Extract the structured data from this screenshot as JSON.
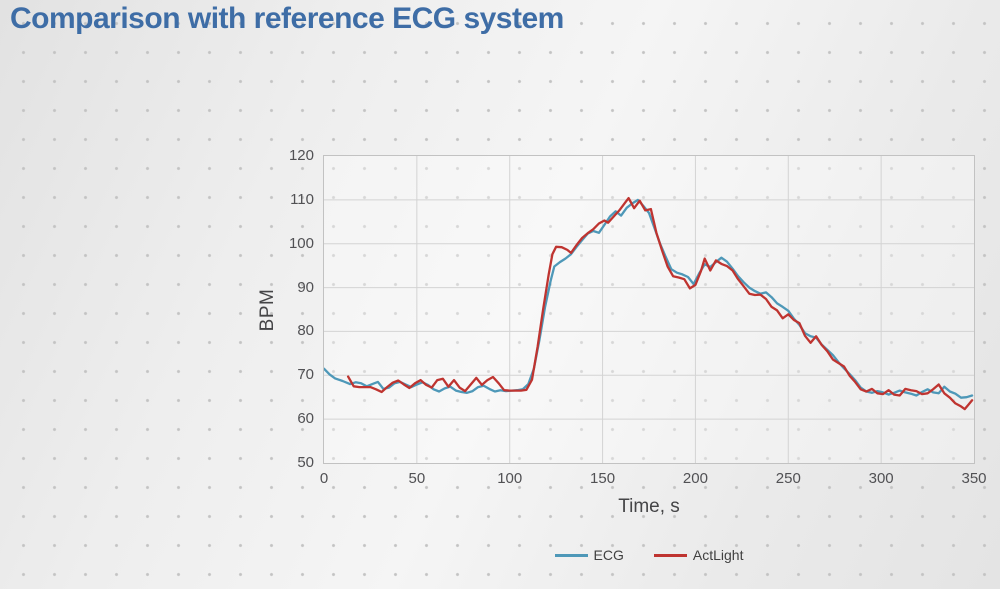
{
  "title": "Comparison with reference ECG system",
  "colors": {
    "title_text": "#3e6da6",
    "background": "#ececec",
    "grid": "#d3d3d3",
    "plot_border": "#c2c2c2",
    "tick_text": "#515154",
    "axis_label_text": "#454547",
    "legend_text": "#414141",
    "ecg_line": "#4e98b8",
    "actlight_line": "#bf3430"
  },
  "chart_data": {
    "type": "line",
    "title": "",
    "xlabel": "Time, s",
    "ylabel": "BPM",
    "xlim": [
      0,
      350
    ],
    "ylim": [
      50,
      120
    ],
    "x_ticks": [
      0,
      50,
      100,
      150,
      200,
      250,
      300,
      350
    ],
    "y_ticks": [
      50,
      60,
      70,
      80,
      90,
      100,
      110,
      120
    ],
    "grid": true,
    "legend_position": "bottom-center",
    "series": [
      {
        "name": "ECG",
        "color": "#4e98b8",
        "x": [
          0,
          3,
          6,
          10,
          14,
          17,
          20,
          23,
          26,
          29,
          32,
          35,
          38,
          41,
          44,
          47,
          50,
          53,
          56,
          59,
          62,
          65,
          68,
          71,
          74,
          77,
          80,
          83,
          86,
          89,
          92,
          95,
          98,
          101,
          104,
          107,
          110,
          113,
          116,
          119,
          122,
          124,
          127,
          130,
          133,
          136,
          139,
          142,
          145,
          148,
          151,
          154,
          157,
          160,
          163,
          166,
          169,
          172,
          175,
          178,
          181,
          184,
          187,
          190,
          193,
          196,
          199,
          202,
          205,
          208,
          211,
          214,
          217,
          220,
          223,
          226,
          229,
          232,
          235,
          238,
          241,
          244,
          247,
          250,
          253,
          256,
          259,
          262,
          265,
          268,
          271,
          274,
          277,
          280,
          283,
          286,
          289,
          292,
          295,
          298,
          301,
          304,
          307,
          310,
          313,
          316,
          319,
          322,
          325,
          328,
          331,
          334,
          337,
          340,
          343,
          346,
          349
        ],
        "y": [
          71.5,
          70.2,
          69.3,
          68.7,
          68.0,
          68.4,
          68.2,
          67.5,
          68.0,
          68.5,
          66.9,
          67.2,
          68.2,
          68.5,
          67.9,
          67.3,
          67.9,
          68.4,
          67.8,
          66.8,
          66.3,
          67.0,
          67.4,
          66.5,
          66.2,
          66.0,
          66.4,
          67.3,
          67.6,
          66.9,
          66.3,
          66.6,
          66.4,
          66.5,
          66.6,
          66.8,
          68.0,
          71.5,
          78.0,
          85.5,
          91.5,
          94.8,
          95.8,
          96.6,
          97.6,
          99.3,
          100.8,
          102.3,
          102.9,
          102.5,
          104.3,
          106.2,
          107.4,
          106.4,
          108.2,
          109.2,
          110.0,
          108.6,
          107.0,
          103.5,
          100.0,
          97.0,
          94.2,
          93.4,
          93.0,
          92.4,
          90.8,
          93.2,
          95.3,
          94.7,
          95.8,
          96.8,
          95.9,
          94.3,
          92.6,
          91.2,
          90.0,
          89.2,
          88.6,
          88.9,
          87.8,
          86.4,
          85.6,
          84.7,
          82.9,
          81.5,
          79.6,
          78.9,
          78.6,
          77.0,
          75.8,
          74.6,
          73.0,
          71.6,
          70.3,
          68.9,
          67.2,
          66.3,
          66.0,
          66.4,
          66.1,
          65.6,
          66.0,
          66.5,
          66.1,
          65.8,
          65.4,
          66.2,
          66.8,
          66.1,
          65.9,
          67.4,
          66.3,
          65.8,
          64.9,
          65.0,
          65.4
        ]
      },
      {
        "name": "ActLight",
        "color": "#bf3430",
        "x": [
          13,
          16,
          19,
          22,
          25,
          28,
          31,
          34,
          37,
          40,
          43,
          46,
          49,
          52,
          55,
          58,
          61,
          64,
          67,
          70,
          73,
          76,
          79,
          82,
          85,
          88,
          91,
          94,
          97,
          100,
          103,
          106,
          109,
          112,
          115,
          118,
          121,
          123,
          125,
          128,
          131,
          133,
          136,
          139,
          142,
          145,
          148,
          151,
          153,
          156,
          159,
          162,
          164,
          167,
          170,
          173,
          176,
          179,
          182,
          185,
          188,
          191,
          194,
          197,
          200,
          203,
          205,
          208,
          211,
          214,
          217,
          220,
          223,
          226,
          229,
          232,
          235,
          238,
          241,
          244,
          247,
          250,
          253,
          256,
          259,
          262,
          265,
          268,
          271,
          274,
          277,
          280,
          283,
          286,
          289,
          292,
          295,
          298,
          301,
          304,
          307,
          310,
          313,
          316,
          319,
          322,
          325,
          328,
          331,
          334,
          337,
          340,
          343,
          345,
          347,
          349
        ],
        "y": [
          69.7,
          67.5,
          67.3,
          67.3,
          67.3,
          66.8,
          66.2,
          67.3,
          68.3,
          68.8,
          67.9,
          67.1,
          68.2,
          68.9,
          67.8,
          67.2,
          68.9,
          69.2,
          67.4,
          68.9,
          67.2,
          66.4,
          67.9,
          69.4,
          67.8,
          68.9,
          69.6,
          68.2,
          66.6,
          66.5,
          66.5,
          66.5,
          66.7,
          69.0,
          76.5,
          85.0,
          93.0,
          97.6,
          99.3,
          99.2,
          98.6,
          97.9,
          99.7,
          101.3,
          102.4,
          103.3,
          104.6,
          105.3,
          104.8,
          106.2,
          107.6,
          109.3,
          110.4,
          108.1,
          109.8,
          107.6,
          107.9,
          102.5,
          98.5,
          94.8,
          92.6,
          92.3,
          91.9,
          89.8,
          90.6,
          93.8,
          96.6,
          93.9,
          96.2,
          95.4,
          94.9,
          93.9,
          91.9,
          90.3,
          88.6,
          88.3,
          88.4,
          87.4,
          85.6,
          84.8,
          83.0,
          83.9,
          82.6,
          81.9,
          79.0,
          77.4,
          78.9,
          76.9,
          75.5,
          73.6,
          72.8,
          72.0,
          69.9,
          68.5,
          66.8,
          66.3,
          66.9,
          65.9,
          65.7,
          66.6,
          65.6,
          65.4,
          66.9,
          66.6,
          66.4,
          65.7,
          65.9,
          66.8,
          67.9,
          65.9,
          64.9,
          63.6,
          62.9,
          62.3,
          63.3,
          64.3
        ]
      }
    ]
  }
}
